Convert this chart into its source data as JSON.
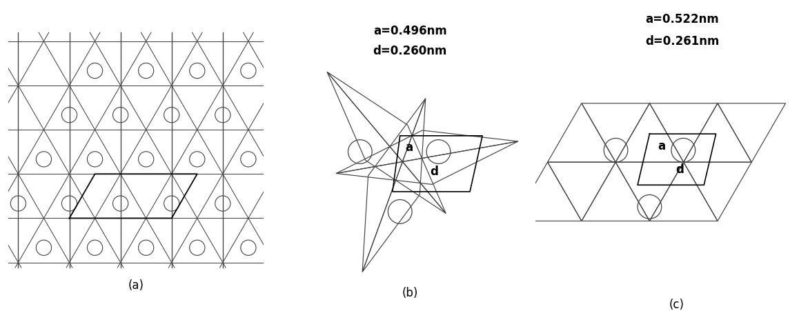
{
  "fig_width": 11.58,
  "fig_height": 4.52,
  "bg_color": "#ffffff",
  "line_color": "#444444",
  "panel_labels": [
    "(a)",
    "(b)",
    "(c)"
  ],
  "panel_b_text1": "a=0.496nm",
  "panel_b_text2": "d=0.260nm",
  "panel_c_text1": "a=0.522nm",
  "panel_c_text2": "d=0.261nm",
  "label_a": "a",
  "label_d": "d"
}
